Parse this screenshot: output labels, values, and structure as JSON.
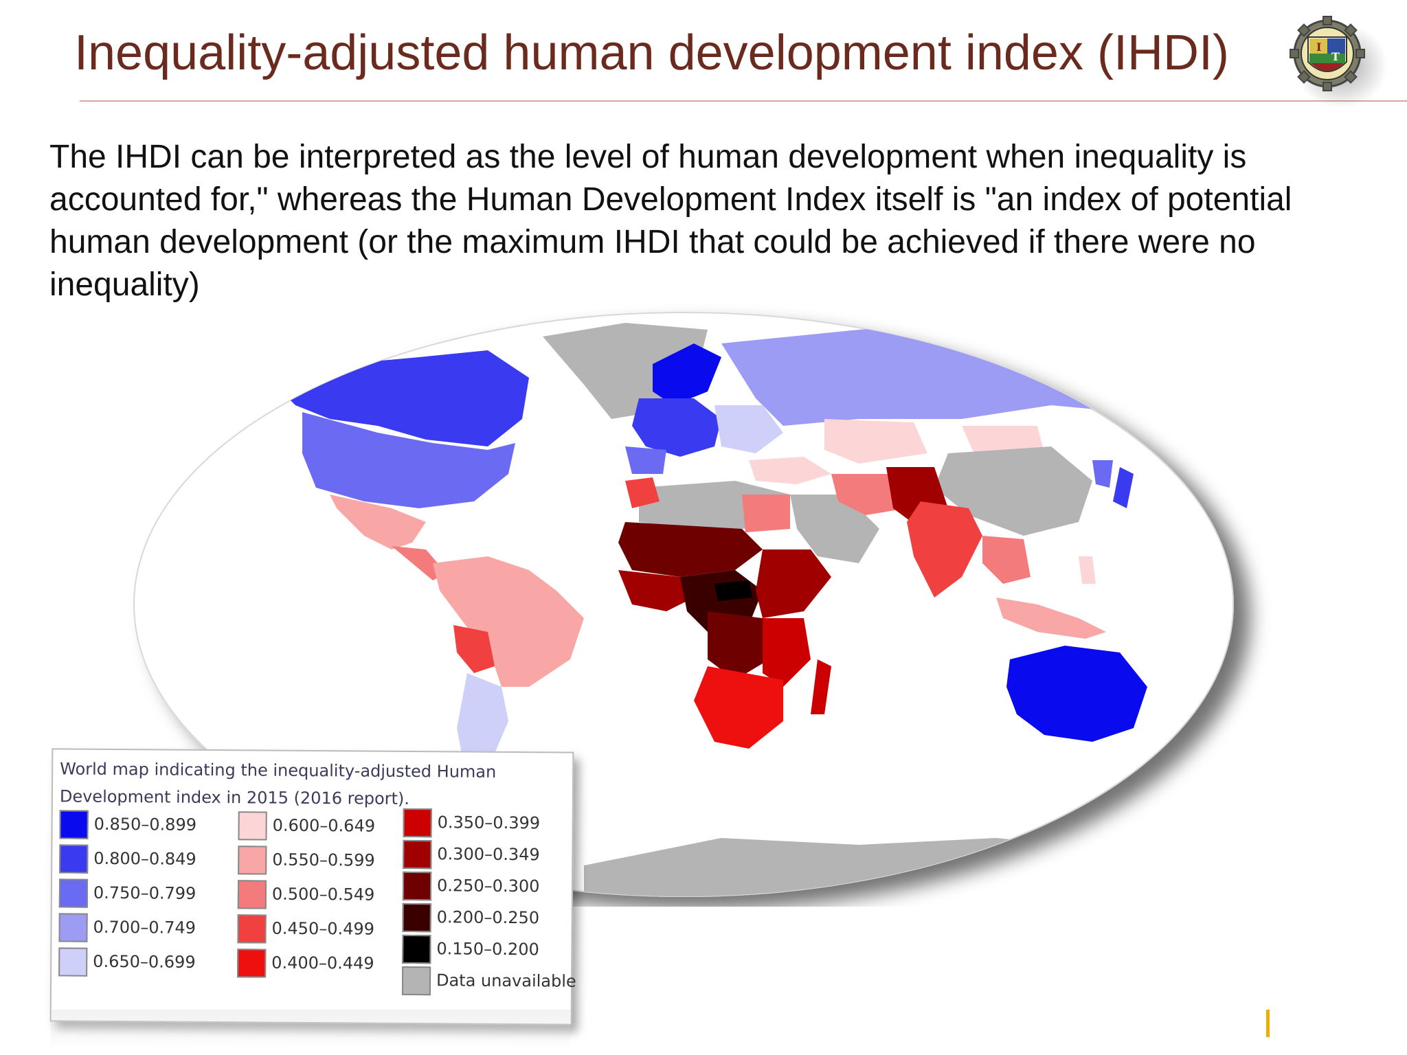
{
  "slide": {
    "title": "Inequality-adjusted human development index (IHDI)",
    "body": "The IHDI can be interpreted as the level of human development when inequality is accounted for,\" whereas the Human Development Index itself is \"an index of potential human development (or the maximum IHDI that could be achieved if there were no inequality)"
  },
  "legend": {
    "caption": "World map indicating the inequality-adjusted Human Development index in 2015 (2016 report).",
    "columns": [
      [
        {
          "label": "0.850–0.899",
          "color": "#0a0aee"
        },
        {
          "label": "0.800–0.849",
          "color": "#3a3af0"
        },
        {
          "label": "0.750–0.799",
          "color": "#6a6af2"
        },
        {
          "label": "0.700–0.749",
          "color": "#9c9cf5"
        },
        {
          "label": "0.650–0.699",
          "color": "#cfd0fa"
        }
      ],
      [
        {
          "label": "0.600–0.649",
          "color": "#fcd6d6"
        },
        {
          "label": "0.550–0.599",
          "color": "#f8a6a6"
        },
        {
          "label": "0.500–0.549",
          "color": "#f47b7b"
        },
        {
          "label": "0.450–0.499",
          "color": "#f04040"
        },
        {
          "label": "0.400–0.449",
          "color": "#ee0f0f"
        }
      ],
      [
        {
          "label": "0.350–0.399",
          "color": "#cc0000"
        },
        {
          "label": "0.300–0.349",
          "color": "#a00000"
        },
        {
          "label": "0.250–0.300",
          "color": "#6e0000"
        },
        {
          "label": "0.200–0.250",
          "color": "#3a0000"
        },
        {
          "label": "0.150–0.200",
          "color": "#000000"
        },
        {
          "label": "Data unavailable",
          "color": "#b4b4b4"
        }
      ]
    ]
  },
  "map_colors": {
    "ocean": "#ffffff",
    "unavailable": "#b4b4b4"
  }
}
